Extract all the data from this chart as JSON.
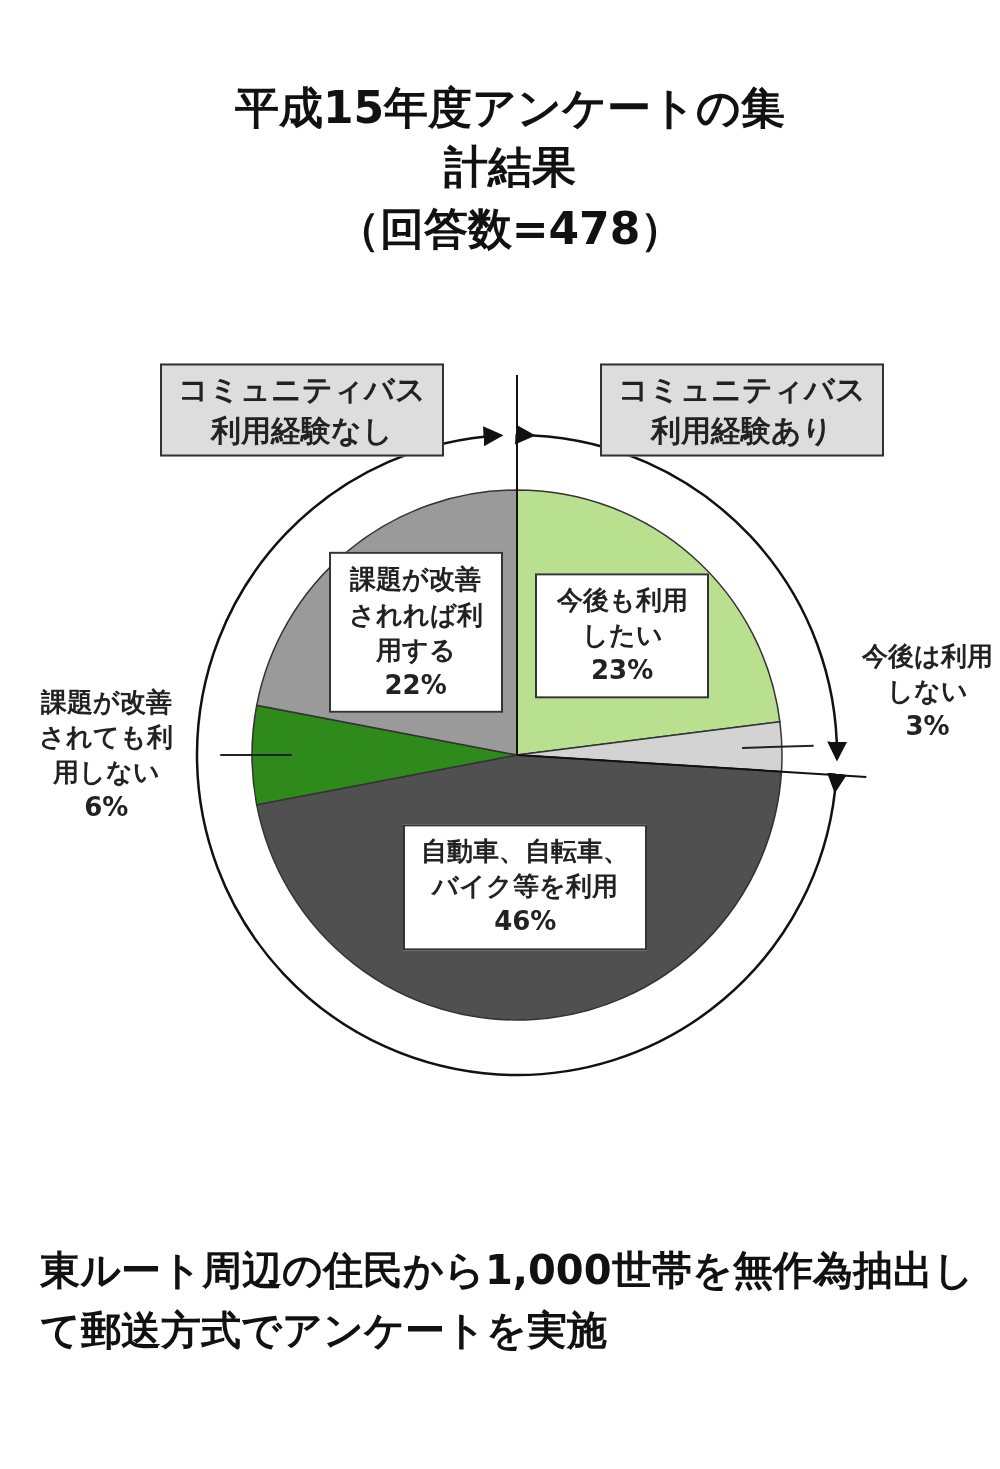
{
  "chart_data": {
    "type": "pie",
    "title": "平成15年度アンケートの集計結果",
    "subtitle": "（回答数=478）",
    "categories": [
      "今後も利用したい",
      "今後は利用しない",
      "自動車、自転車、バイク等を利用",
      "課題が改善されても利用しない",
      "課題が改善されれば利用する"
    ],
    "values": [
      23,
      3,
      46,
      6,
      22
    ],
    "colors": [
      "#b9e08e",
      "#d3d3d3",
      "#505050",
      "#2f8a1c",
      "#9a9a9a"
    ],
    "value_labels": [
      "23%",
      "3%",
      "46%",
      "6%",
      "22%"
    ],
    "annotations": [
      "コミュニティバス利用経験あり",
      "コミュニティバス利用経験なし",
      "東ルート周辺の住民から1,000世帯を無作為抽出して郵送方式でアンケートを実施"
    ]
  }
}
